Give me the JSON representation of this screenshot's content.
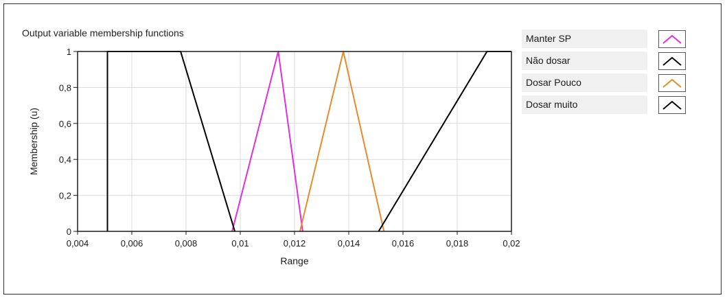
{
  "chart_data": {
    "type": "line",
    "title": "Output variable membership functions",
    "xlabel": "Range",
    "ylabel": "Membership (u)",
    "xlim": [
      0.004,
      0.02
    ],
    "ylim": [
      0,
      1
    ],
    "xticks": [
      0.004,
      0.006,
      0.008,
      0.01,
      0.012,
      0.014,
      0.016,
      0.018,
      0.02
    ],
    "xtick_labels": [
      "0,004",
      "0,006",
      "0,008",
      "0,01",
      "0,012",
      "0,014",
      "0,016",
      "0,018",
      "0,02"
    ],
    "yticks": [
      0,
      0.2,
      0.4,
      0.6,
      0.8,
      1
    ],
    "ytick_labels": [
      "0",
      "0,2",
      "0,4",
      "0,6",
      "0,8",
      "1"
    ],
    "grid": true,
    "legend_position": "right",
    "series": [
      {
        "name": "Manter SP",
        "color": "#e02de0",
        "x": [
          0.0097,
          0.0114,
          0.0123
        ],
        "y": [
          0,
          1,
          0
        ]
      },
      {
        "name": "Não dosar",
        "color": "#000000",
        "x": [
          0.0051,
          0.0051,
          0.0078,
          0.0098
        ],
        "y": [
          0,
          1,
          1,
          0
        ]
      },
      {
        "name": "Dosar Pouco",
        "color": "#e8892a",
        "x": [
          0.0122,
          0.0138,
          0.0153
        ],
        "y": [
          0,
          1,
          0
        ]
      },
      {
        "name": "Dosar muito",
        "color": "#000000",
        "x": [
          0.0151,
          0.0191,
          0.02
        ],
        "y": [
          0,
          1,
          1
        ]
      }
    ]
  }
}
